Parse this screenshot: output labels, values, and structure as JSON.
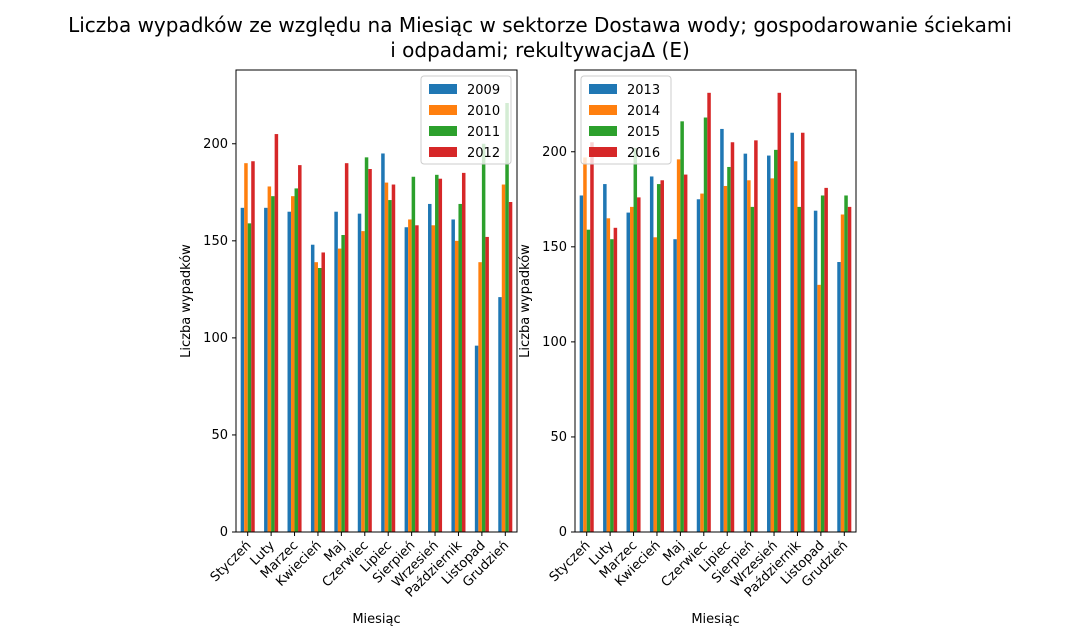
{
  "chart_data": {
    "title_line1": "Liczba wypadków ze względu na Miesiąc w sektorze Dostawa wody; gospodarowanie ściekami",
    "title_line2": "i odpadami;  rekultywacjaΔ  (E)",
    "categories": [
      "Styczeń",
      "Luty",
      "Marzec",
      "Kwiecień",
      "Maj",
      "Czerwiec",
      "Lipiec",
      "Sierpień",
      "Wrzesień",
      "Październik",
      "Listopad",
      "Grudzień"
    ],
    "colors": [
      "#1f77b4",
      "#ff7f0e",
      "#2ca02c",
      "#d62728"
    ],
    "panels": [
      {
        "type": "bar",
        "xlabel": "Miesiąc",
        "ylabel": "Liczba wypadków",
        "ylim": [
          0,
          238
        ],
        "yticks": [
          0,
          50,
          100,
          150,
          200
        ],
        "legend_position": "top-right",
        "series": [
          {
            "name": "2009",
            "values": [
              167,
              167,
              165,
              148,
              165,
              164,
              195,
              157,
              169,
              161,
              96,
              121
            ]
          },
          {
            "name": "2010",
            "values": [
              190,
              178,
              173,
              139,
              146,
              155,
              180,
              161,
              158,
              150,
              139,
              179
            ]
          },
          {
            "name": "2011",
            "values": [
              159,
              173,
              177,
              136,
              153,
              193,
              171,
              183,
              184,
              169,
              200,
              221
            ]
          },
          {
            "name": "2012",
            "values": [
              191,
              205,
              189,
              144,
              190,
              187,
              179,
              158,
              182,
              185,
              152,
              170
            ]
          }
        ]
      },
      {
        "type": "bar",
        "xlabel": "Miesiąc",
        "ylabel": "Liczba wypadków",
        "ylim": [
          0,
          243
        ],
        "yticks": [
          0,
          50,
          100,
          150,
          200
        ],
        "legend_position": "top-left",
        "series": [
          {
            "name": "2013",
            "values": [
              177,
              183,
              168,
              187,
              154,
              175,
              212,
              199,
              198,
              210,
              169,
              142
            ]
          },
          {
            "name": "2014",
            "values": [
              197,
              165,
              171,
              155,
              196,
              178,
              182,
              185,
              186,
              195,
              130,
              167
            ]
          },
          {
            "name": "2015",
            "values": [
              159,
              154,
              202,
              183,
              216,
              218,
              192,
              171,
              201,
              171,
              177,
              177
            ]
          },
          {
            "name": "2016",
            "values": [
              205,
              160,
              176,
              185,
              188,
              231,
              205,
              206,
              231,
              210,
              181,
              171
            ]
          }
        ]
      }
    ]
  }
}
